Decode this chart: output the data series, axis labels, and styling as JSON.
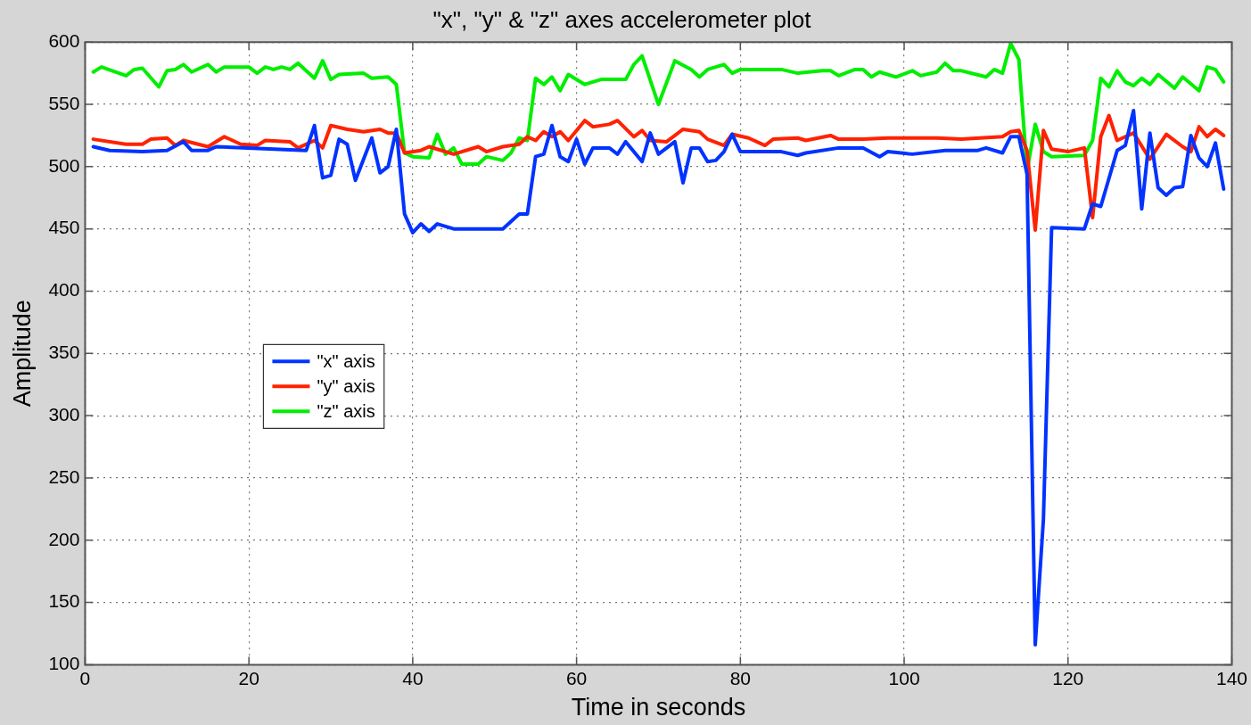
{
  "chart_data": {
    "type": "line",
    "title": "\"x\", \"y\" & \"z\" axes accelerometer plot",
    "xlabel": "Time in seconds",
    "ylabel": "Amplitude",
    "xlim": [
      0,
      140
    ],
    "xticks": [
      0,
      20,
      40,
      60,
      80,
      100,
      120,
      140
    ],
    "ylim": [
      100,
      600
    ],
    "yticks": [
      100,
      150,
      200,
      250,
      300,
      350,
      400,
      450,
      500,
      550,
      600
    ],
    "grid": true,
    "legend": "left",
    "marker": "none",
    "line_style": "solid",
    "series": [
      {
        "name": "\"x\" axis",
        "color": "#0033ff",
        "x": [
          1,
          3,
          7,
          10,
          12,
          13,
          15,
          16,
          27,
          28,
          29,
          30,
          31,
          32,
          33,
          35,
          36,
          37,
          38,
          39,
          40,
          41,
          42,
          43,
          45,
          51,
          53,
          54,
          55,
          56,
          57,
          58,
          59,
          60,
          61,
          62,
          64,
          65,
          66,
          68,
          69,
          70,
          72,
          73,
          74,
          75,
          76,
          77,
          78,
          79,
          80,
          85,
          87,
          88,
          92,
          95,
          97,
          98,
          101,
          105,
          109,
          110,
          112,
          113,
          114,
          115,
          116,
          117,
          118,
          122,
          123,
          124,
          126,
          127,
          128,
          129,
          130,
          131,
          132,
          133,
          134,
          135,
          136,
          137,
          138,
          139
        ],
        "values": [
          516,
          513,
          512,
          513,
          520,
          513,
          513,
          516,
          513,
          533,
          491,
          493,
          522,
          518,
          489,
          523,
          495,
          500,
          530,
          462,
          447,
          454,
          448,
          454,
          450,
          450,
          462,
          462,
          508,
          510,
          533,
          508,
          504,
          522,
          502,
          515,
          515,
          510,
          520,
          504,
          527,
          510,
          520,
          487,
          515,
          515,
          504,
          505,
          512,
          526,
          512,
          512,
          509,
          511,
          515,
          515,
          508,
          512,
          510,
          513,
          513,
          515,
          511,
          524,
          524,
          494,
          116,
          217,
          451,
          450,
          470,
          468,
          513,
          517,
          545,
          466,
          527,
          483,
          477,
          483,
          484,
          525,
          507,
          500,
          519,
          482
        ]
      },
      {
        "name": "\"y\" axis",
        "color": "#ff2200",
        "x": [
          1,
          5,
          7,
          8,
          10,
          11,
          12,
          15,
          17,
          19,
          21,
          22,
          25,
          26,
          28,
          29,
          30,
          32,
          34,
          36,
          37,
          38,
          39,
          41,
          42,
          45,
          48,
          49,
          51,
          53,
          54,
          55,
          56,
          57,
          58,
          59,
          61,
          62,
          64,
          65,
          67,
          68,
          69,
          71,
          73,
          75,
          76,
          78,
          79,
          81,
          83,
          84,
          87,
          88,
          91,
          92,
          95,
          98,
          104,
          107,
          112,
          113,
          114,
          115,
          116,
          117,
          118,
          120,
          122,
          123,
          124,
          125,
          126,
          128,
          130,
          132,
          134,
          135,
          136,
          137,
          138,
          139
        ],
        "values": [
          522,
          518,
          518,
          522,
          523,
          517,
          521,
          516,
          524,
          518,
          517,
          521,
          520,
          515,
          521,
          515,
          533,
          530,
          528,
          530,
          527,
          527,
          511,
          513,
          516,
          510,
          516,
          512,
          516,
          518,
          524,
          521,
          528,
          524,
          528,
          521,
          537,
          532,
          534,
          537,
          524,
          529,
          521,
          520,
          530,
          528,
          522,
          517,
          526,
          523,
          517,
          522,
          523,
          521,
          525,
          522,
          522,
          523,
          523,
          522,
          524,
          528,
          529,
          513,
          449,
          529,
          514,
          512,
          515,
          459,
          524,
          541,
          521,
          527,
          506,
          526,
          516,
          512,
          532,
          524,
          530,
          525
        ]
      },
      {
        "name": "\"z\" axis",
        "color": "#00ee00",
        "x": [
          1,
          2,
          5,
          6,
          7,
          9,
          10,
          11,
          12,
          13,
          15,
          16,
          17,
          20,
          21,
          22,
          23,
          24,
          25,
          26,
          28,
          29,
          30,
          31,
          34,
          35,
          37,
          38,
          39,
          40,
          42,
          43,
          44,
          45,
          46,
          48,
          49,
          51,
          52,
          53,
          54,
          55,
          56,
          57,
          58,
          59,
          61,
          63,
          66,
          67,
          68,
          70,
          72,
          74,
          75,
          76,
          78,
          79,
          80,
          85,
          87,
          90,
          91,
          92,
          94,
          95,
          96,
          97,
          99,
          101,
          102,
          104,
          105,
          106,
          107,
          110,
          111,
          112,
          113,
          114,
          115,
          116,
          117,
          118,
          122,
          123,
          124,
          125,
          126,
          127,
          128,
          129,
          130,
          131,
          133,
          134,
          136,
          137,
          138,
          139
        ],
        "values": [
          576,
          580,
          573,
          578,
          579,
          564,
          577,
          578,
          582,
          576,
          582,
          576,
          580,
          580,
          575,
          580,
          578,
          580,
          578,
          583,
          571,
          585,
          570,
          574,
          575,
          571,
          572,
          566,
          511,
          508,
          507,
          526,
          510,
          515,
          502,
          502,
          508,
          505,
          511,
          523,
          521,
          571,
          566,
          572,
          561,
          574,
          566,
          570,
          570,
          582,
          589,
          550,
          585,
          578,
          572,
          578,
          582,
          575,
          578,
          578,
          575,
          577,
          577,
          573,
          578,
          578,
          572,
          576,
          572,
          577,
          573,
          576,
          583,
          577,
          577,
          572,
          578,
          575,
          599,
          586,
          497,
          534,
          512,
          508,
          509,
          521,
          571,
          564,
          577,
          568,
          565,
          571,
          566,
          574,
          563,
          572,
          561,
          580,
          578,
          568
        ]
      }
    ]
  }
}
